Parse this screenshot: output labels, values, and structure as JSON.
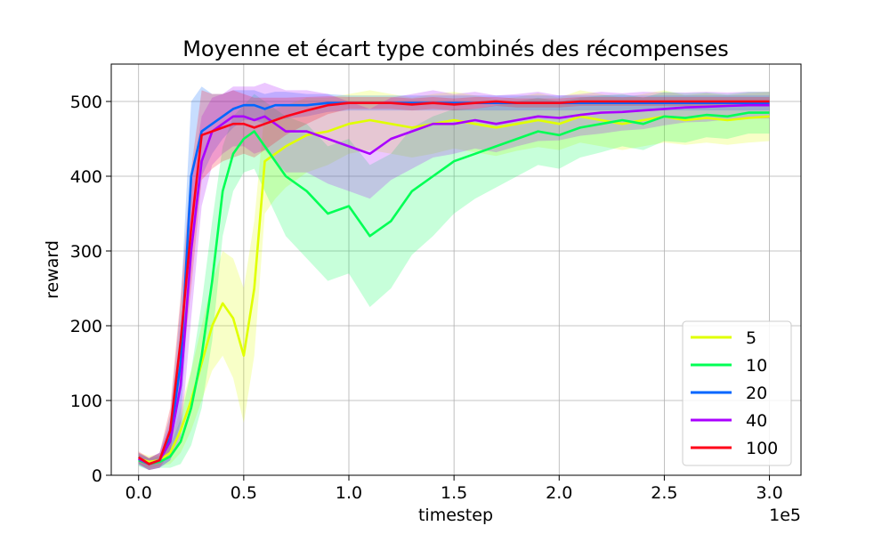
{
  "chart_data": {
    "type": "line",
    "title": "Moyenne et écart type combinés des récompenses",
    "xlabel": "timestep",
    "ylabel": "reward",
    "x_offset_label": "1e5",
    "xlim": [
      -0.13,
      3.15
    ],
    "ylim": [
      0,
      550
    ],
    "x_ticks": [
      0.0,
      0.5,
      1.0,
      1.5,
      2.0,
      2.5,
      3.0
    ],
    "x_tick_labels": [
      "0.0",
      "0.5",
      "1.0",
      "1.5",
      "2.0",
      "2.5",
      "3.0"
    ],
    "y_ticks": [
      0,
      100,
      200,
      300,
      400,
      500
    ],
    "y_tick_labels": [
      "0",
      "100",
      "200",
      "300",
      "400",
      "500"
    ],
    "grid": true,
    "legend_position": "bottom-right",
    "x": [
      0.0,
      0.05,
      0.1,
      0.15,
      0.2,
      0.25,
      0.3,
      0.35,
      0.4,
      0.45,
      0.5,
      0.55,
      0.6,
      0.65,
      0.7,
      0.8,
      0.9,
      1.0,
      1.1,
      1.2,
      1.3,
      1.4,
      1.5,
      1.6,
      1.7,
      1.8,
      1.9,
      2.0,
      2.1,
      2.2,
      2.3,
      2.4,
      2.5,
      2.6,
      2.7,
      2.8,
      2.9,
      3.0
    ],
    "series": [
      {
        "name": "5",
        "color": "#e0ff00",
        "values": [
          22,
          18,
          20,
          30,
          60,
          100,
          150,
          200,
          230,
          210,
          160,
          250,
          420,
          430,
          440,
          455,
          460,
          470,
          475,
          470,
          465,
          470,
          475,
          470,
          465,
          470,
          475,
          470,
          480,
          475,
          470,
          475,
          480,
          475,
          478,
          475,
          478,
          480
        ],
        "std": [
          8,
          8,
          8,
          15,
          30,
          40,
          50,
          60,
          70,
          80,
          90,
          90,
          70,
          60,
          55,
          50,
          45,
          40,
          40,
          40,
          40,
          40,
          38,
          38,
          38,
          36,
          36,
          35,
          35,
          35,
          35,
          35,
          35,
          33,
          33,
          33,
          33,
          33
        ]
      },
      {
        "name": "10",
        "color": "#00ff55",
        "values": [
          20,
          15,
          18,
          25,
          45,
          90,
          160,
          260,
          380,
          430,
          450,
          460,
          440,
          420,
          400,
          380,
          350,
          360,
          320,
          340,
          380,
          400,
          420,
          430,
          440,
          450,
          460,
          455,
          465,
          470,
          475,
          470,
          480,
          478,
          482,
          480,
          485,
          485
        ],
        "std": [
          8,
          8,
          8,
          15,
          30,
          50,
          70,
          80,
          60,
          50,
          45,
          50,
          60,
          70,
          80,
          90,
          90,
          90,
          95,
          90,
          85,
          80,
          70,
          60,
          55,
          50,
          45,
          45,
          40,
          38,
          35,
          35,
          33,
          33,
          30,
          30,
          28,
          28
        ]
      },
      {
        "name": "20",
        "color": "#0066ff",
        "values": [
          22,
          15,
          20,
          50,
          150,
          400,
          460,
          470,
          480,
          490,
          495,
          495,
          490,
          495,
          495,
          495,
          498,
          498,
          498,
          498,
          498,
          498,
          498,
          498,
          498,
          498,
          498,
          498,
          498,
          498,
          498,
          498,
          498,
          498,
          498,
          498,
          498,
          498
        ],
        "std": [
          8,
          8,
          10,
          30,
          80,
          100,
          60,
          40,
          30,
          25,
          20,
          20,
          20,
          18,
          18,
          15,
          12,
          10,
          10,
          10,
          10,
          10,
          10,
          10,
          10,
          10,
          10,
          10,
          10,
          10,
          10,
          10,
          10,
          10,
          10,
          10,
          10,
          10
        ]
      },
      {
        "name": "40",
        "color": "#aa00ff",
        "values": [
          22,
          15,
          20,
          45,
          120,
          300,
          420,
          460,
          470,
          480,
          480,
          475,
          480,
          470,
          460,
          460,
          450,
          440,
          430,
          450,
          460,
          470,
          470,
          475,
          470,
          475,
          480,
          478,
          482,
          485,
          486,
          488,
          490,
          492,
          493,
          494,
          495,
          495
        ],
        "std": [
          8,
          8,
          10,
          25,
          70,
          90,
          60,
          45,
          40,
          40,
          40,
          45,
          45,
          50,
          55,
          55,
          60,
          60,
          60,
          55,
          50,
          45,
          40,
          38,
          38,
          35,
          33,
          30,
          28,
          28,
          25,
          25,
          22,
          20,
          20,
          18,
          18,
          18
        ]
      },
      {
        "name": "100",
        "color": "#ff0018",
        "values": [
          24,
          15,
          20,
          60,
          180,
          330,
          455,
          460,
          465,
          470,
          470,
          465,
          470,
          475,
          480,
          488,
          495,
          498,
          498,
          498,
          496,
          498,
          496,
          498,
          500,
          498,
          498,
          498,
          500,
          500,
          500,
          500,
          500,
          500,
          500,
          500,
          500,
          500
        ],
        "std": [
          8,
          8,
          10,
          30,
          60,
          80,
          60,
          50,
          45,
          45,
          40,
          40,
          35,
          30,
          25,
          18,
          12,
          8,
          8,
          8,
          8,
          8,
          8,
          8,
          6,
          6,
          6,
          6,
          6,
          6,
          6,
          6,
          6,
          6,
          6,
          6,
          6,
          6
        ]
      }
    ]
  }
}
